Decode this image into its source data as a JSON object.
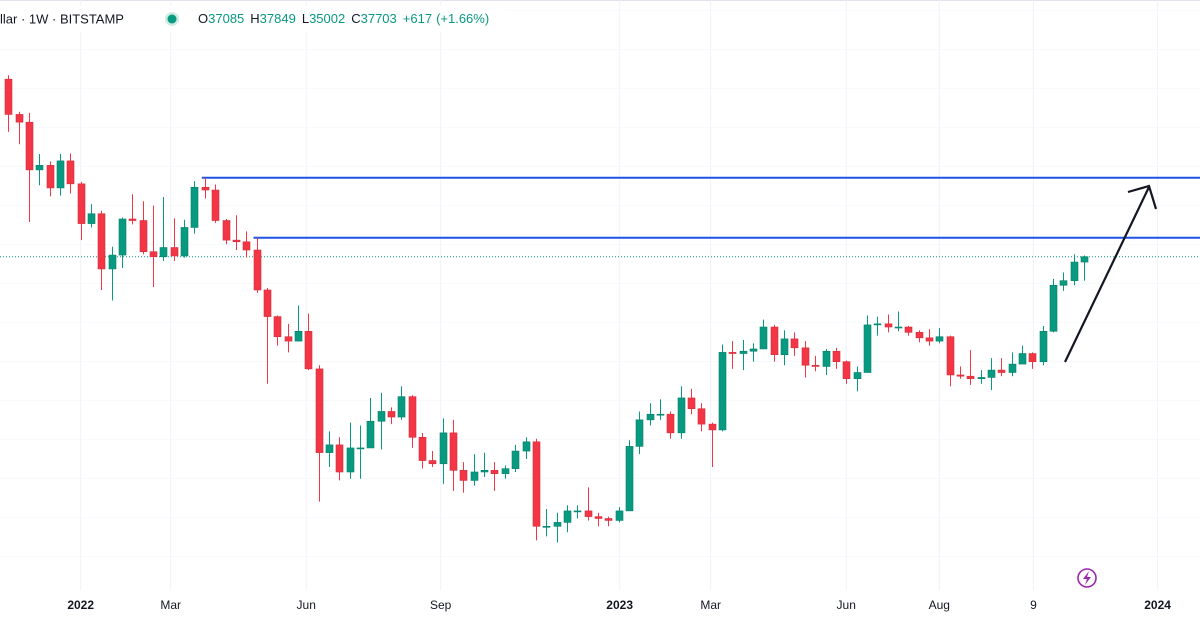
{
  "chart_data": {
    "type": "candlestick",
    "header": {
      "symbol": "llar · 1W · BITSTAMP",
      "ohlc": [
        {
          "label": "O",
          "value": 37085
        },
        {
          "label": "H",
          "value": 37849
        },
        {
          "label": "L",
          "value": 35002
        },
        {
          "label": "C",
          "value": 37703
        }
      ],
      "change": "+617",
      "change_pct": "(+1.66%)"
    },
    "up_color": "#089981",
    "down_color": "#f23645",
    "log_scale": true,
    "ylim": [
      13370,
      83800
    ],
    "xlim": [
      -0.8,
      115.2
    ],
    "xticks": [
      {
        "value": 7,
        "label": "2022"
      },
      {
        "value": 15.7,
        "label": "Mar"
      },
      {
        "value": 28.8,
        "label": "Jun"
      },
      {
        "value": 41.8,
        "label": "Sep"
      },
      {
        "value": 59.1,
        "label": "2023"
      },
      {
        "value": 67.9,
        "label": "Mar"
      },
      {
        "value": 81,
        "label": "Jun"
      },
      {
        "value": 90,
        "label": "Aug"
      },
      {
        "value": 99.1,
        "label": "9"
      },
      {
        "value": 111.1,
        "label": "2024"
      }
    ],
    "levels": [
      {
        "price": 48200,
        "start": 19,
        "color": "#1e53e5"
      },
      {
        "price": 40000,
        "start": 24,
        "color": "#1e53e5"
      }
    ],
    "open": [
      65500,
      58700,
      57300,
      49400,
      50100,
      46700,
      50800,
      47300,
      41800,
      43100,
      36300,
      37900,
      42400,
      42200,
      38300,
      37700,
      38800,
      37800,
      41300,
      46800,
      46400,
      42200,
      39700,
      39500,
      38500,
      34000,
      31300,
      29400,
      29000,
      29900,
      26600,
      20500,
      21000,
      19300,
      20800,
      20800,
      22600,
      23300,
      22900,
      24400,
      21500,
      20000,
      19800,
      21800,
      19400,
      18800,
      19300,
      19400,
      19200,
      19500,
      20600,
      21200,
      16300,
      16300,
      16500,
      17100,
      17100,
      16800,
      16700,
      16600,
      17100,
      20900,
      22700,
      23100,
      23100,
      21800,
      24300,
      23500,
      22400,
      22000,
      28000,
      27900,
      28100,
      28300,
      30300,
      27800,
      29200,
      28400,
      26900,
      26800,
      28100,
      27200,
      25800,
      26300,
      30500,
      30600,
      30300,
      30300,
      29800,
      29300,
      29000,
      29400,
      26100,
      26000,
      25800,
      25900,
      26500,
      26300,
      27000,
      27900,
      27200,
      29900,
      34500,
      35000,
      37085
    ],
    "high": [
      66300,
      59200,
      59000,
      51900,
      50700,
      51900,
      52000,
      47600,
      44400,
      43500,
      38900,
      42600,
      45800,
      44800,
      44200,
      45400,
      42500,
      42300,
      47700,
      48200,
      47200,
      42400,
      42900,
      40800,
      40000,
      34200,
      31400,
      30600,
      32400,
      31600,
      26900,
      21900,
      21500,
      22500,
      22300,
      24300,
      24700,
      23600,
      25200,
      24500,
      21800,
      20600,
      22800,
      22700,
      19900,
      20400,
      20500,
      19900,
      19700,
      21000,
      21500,
      21400,
      17200,
      17000,
      17400,
      17400,
      18400,
      17000,
      16800,
      17300,
      21300,
      23300,
      23900,
      24200,
      23300,
      25200,
      25000,
      23900,
      22500,
      28700,
      29000,
      29100,
      28800,
      31000,
      30500,
      30000,
      29800,
      29000,
      27700,
      28300,
      28400,
      27300,
      26800,
      31400,
      31300,
      31500,
      31800,
      30400,
      30000,
      30100,
      30200,
      29500,
      26800,
      28200,
      26500,
      27500,
      27500,
      28000,
      28600,
      28000,
      30400,
      35200,
      35900,
      38000,
      37849
    ],
    "low": [
      55600,
      53500,
      42000,
      47100,
      45500,
      45600,
      45900,
      39700,
      41300,
      34000,
      32900,
      36400,
      41700,
      38000,
      34300,
      37200,
      37200,
      37600,
      40500,
      45200,
      41900,
      39200,
      38500,
      37600,
      33700,
      25400,
      28600,
      28000,
      29000,
      26500,
      17600,
      19600,
      18800,
      18900,
      18900,
      20800,
      20700,
      22400,
      22700,
      20800,
      19500,
      19600,
      18600,
      18200,
      18100,
      18500,
      19000,
      18200,
      18900,
      19300,
      20100,
      15600,
      15800,
      15500,
      16000,
      16700,
      16600,
      16300,
      16300,
      16500,
      17100,
      20400,
      22300,
      22700,
      21400,
      21400,
      23100,
      21900,
      19600,
      21900,
      26600,
      26500,
      27200,
      28300,
      27200,
      26900,
      27700,
      25900,
      26400,
      26100,
      26600,
      25400,
      24800,
      26300,
      29500,
      29800,
      29900,
      29500,
      28900,
      28600,
      28800,
      25200,
      25800,
      25300,
      25400,
      24900,
      26000,
      26000,
      27000,
      26600,
      26900,
      29800,
      33900,
      34500,
      35002
    ],
    "close": [
      58700,
      57300,
      49400,
      50100,
      46700,
      50800,
      47300,
      41800,
      43100,
      36300,
      37900,
      42400,
      42200,
      38300,
      37700,
      38800,
      37800,
      41300,
      46800,
      46400,
      42200,
      39700,
      39500,
      38500,
      34000,
      31300,
      29400,
      29000,
      29900,
      26600,
      20500,
      21000,
      19300,
      20800,
      20800,
      22600,
      23300,
      22900,
      24400,
      21500,
      20000,
      19800,
      21800,
      19400,
      18800,
      19300,
      19400,
      19200,
      19500,
      20600,
      21200,
      16300,
      16300,
      16500,
      17100,
      17100,
      16800,
      16700,
      16600,
      17100,
      20900,
      22700,
      23100,
      23100,
      21800,
      24300,
      23500,
      22400,
      22000,
      28000,
      27900,
      28100,
      28300,
      30300,
      27800,
      29200,
      28400,
      26900,
      26800,
      28100,
      27200,
      25800,
      26300,
      30500,
      30600,
      30300,
      30300,
      29800,
      29300,
      29000,
      29400,
      26100,
      26000,
      25800,
      25900,
      26500,
      26300,
      27000,
      27900,
      27200,
      29900,
      34500,
      35000,
      37085,
      37703
    ]
  }
}
